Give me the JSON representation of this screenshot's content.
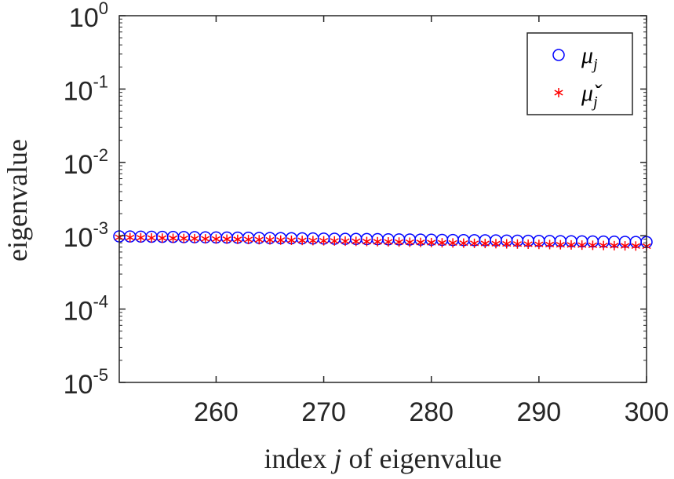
{
  "chart_data": {
    "type": "scatter",
    "title": "",
    "xlabel_prefix": "index ",
    "xlabel_var": "j",
    "xlabel_suffix": " of eigenvalue",
    "ylabel": "eigenvalue",
    "yscale": "log",
    "xlim": [
      251,
      300
    ],
    "ylim": [
      1e-05,
      1
    ],
    "xticks": [
      260,
      270,
      280,
      290,
      300
    ],
    "yticks": [
      {
        "value": 1,
        "base": "10",
        "exp": "0"
      },
      {
        "value": 0.1,
        "base": "10",
        "exp": "-1"
      },
      {
        "value": 0.01,
        "base": "10",
        "exp": "-2"
      },
      {
        "value": 0.001,
        "base": "10",
        "exp": "-3"
      },
      {
        "value": 0.0001,
        "base": "10",
        "exp": "-4"
      },
      {
        "value": 1e-05,
        "base": "10",
        "exp": "-5"
      }
    ],
    "legend_position": "top-right",
    "series": [
      {
        "name": "mu_j",
        "legend_symbol": "μ",
        "legend_sub": "j",
        "marker": "circle",
        "color": "#0000ff",
        "x_start": 251,
        "x_end": 300,
        "y_start": 0.00098,
        "y_end": 0.00082
      },
      {
        "name": "mu_check_j",
        "legend_symbol": "μ̌",
        "legend_sub": "j",
        "marker": "asterisk",
        "color": "#ff0000",
        "x_start": 251,
        "x_end": 300,
        "y_start": 0.00095,
        "y_end": 0.00072
      }
    ]
  }
}
